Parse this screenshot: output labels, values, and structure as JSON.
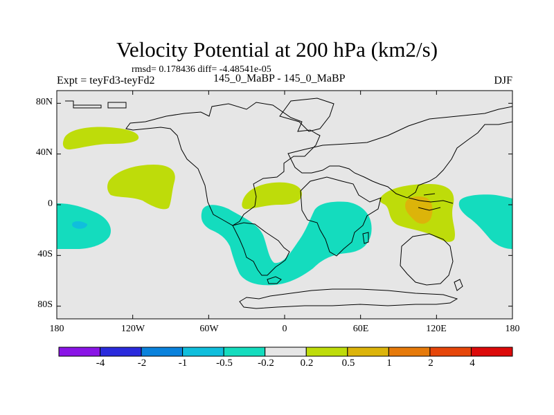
{
  "chart_data": {
    "type": "heatmap",
    "title": "Velocity Potential at 200 hPa (km2/s)",
    "stats_line": "rmsd= 0.178436 diff= -4.48541e-05",
    "left_label": "Expt = teyFd3-teyFd2",
    "center_label": "145_0_MaBP - 145_0_MaBP",
    "right_label": "DJF",
    "x_ticks": [
      "180",
      "120W",
      "60W",
      "0",
      "60E",
      "120E",
      "180"
    ],
    "y_ticks": [
      "80N",
      "40N",
      "0",
      "40S",
      "80S"
    ],
    "xlim": [
      -180,
      180
    ],
    "ylim": [
      -90,
      90
    ],
    "colorbar": {
      "labels": [
        "-4",
        "-2",
        "-1",
        "-0.5",
        "-0.2",
        "0.2",
        "0.5",
        "1",
        "2",
        "4"
      ],
      "colors": [
        "#8a14e6",
        "#2a2adc",
        "#0a82dc",
        "#10bedc",
        "#14dcbe",
        "#e6e6e6",
        "#bedc0a",
        "#dcb40a",
        "#e67a0a",
        "#e6460a",
        "#dc0a0a"
      ]
    },
    "regions": [
      {
        "name": "positive-anomaly-north-pacific",
        "level": "0.2 to 0.5",
        "lon_range": [
          -180,
          -132
        ],
        "lat_range": [
          28,
          50
        ]
      },
      {
        "name": "positive-anomaly-east-pacific",
        "level": "0.2 to 0.5",
        "lon_range": [
          -145,
          -90
        ],
        "lat_range": [
          5,
          32
        ]
      },
      {
        "name": "positive-anomaly-tropical-atlantic",
        "level": "0.2 to 0.5",
        "lon_range": [
          -35,
          15
        ],
        "lat_range": [
          -3,
          18
        ]
      },
      {
        "name": "positive-anomaly-indonesia",
        "level": "0.2 to 0.5",
        "lon_range": [
          75,
          135
        ],
        "lat_range": [
          -30,
          15
        ]
      },
      {
        "name": "positive-max-indonesia",
        "level": "0.5 to 1",
        "lon_range": [
          95,
          115
        ],
        "lat_range": [
          -15,
          3
        ]
      },
      {
        "name": "negative-anomaly-central-pacific",
        "level": "-0.5 to -0.2",
        "lon_range": [
          -180,
          -138
        ],
        "lat_range": [
          -35,
          0
        ]
      },
      {
        "name": "negative-min-central-pacific",
        "level": "-1 to -0.5",
        "lon_range": [
          -170,
          -162
        ],
        "lat_range": [
          -17,
          -12
        ]
      },
      {
        "name": "negative-anomaly-south-atlantic",
        "level": "-0.5 to -0.2",
        "lon_range": [
          -68,
          60
        ],
        "lat_range": [
          -65,
          0
        ]
      },
      {
        "name": "negative-anomaly-east-of-dateline",
        "level": "-0.5 to -0.2",
        "lon_range": [
          138,
          180
        ],
        "lat_range": [
          -35,
          7
        ]
      }
    ]
  }
}
